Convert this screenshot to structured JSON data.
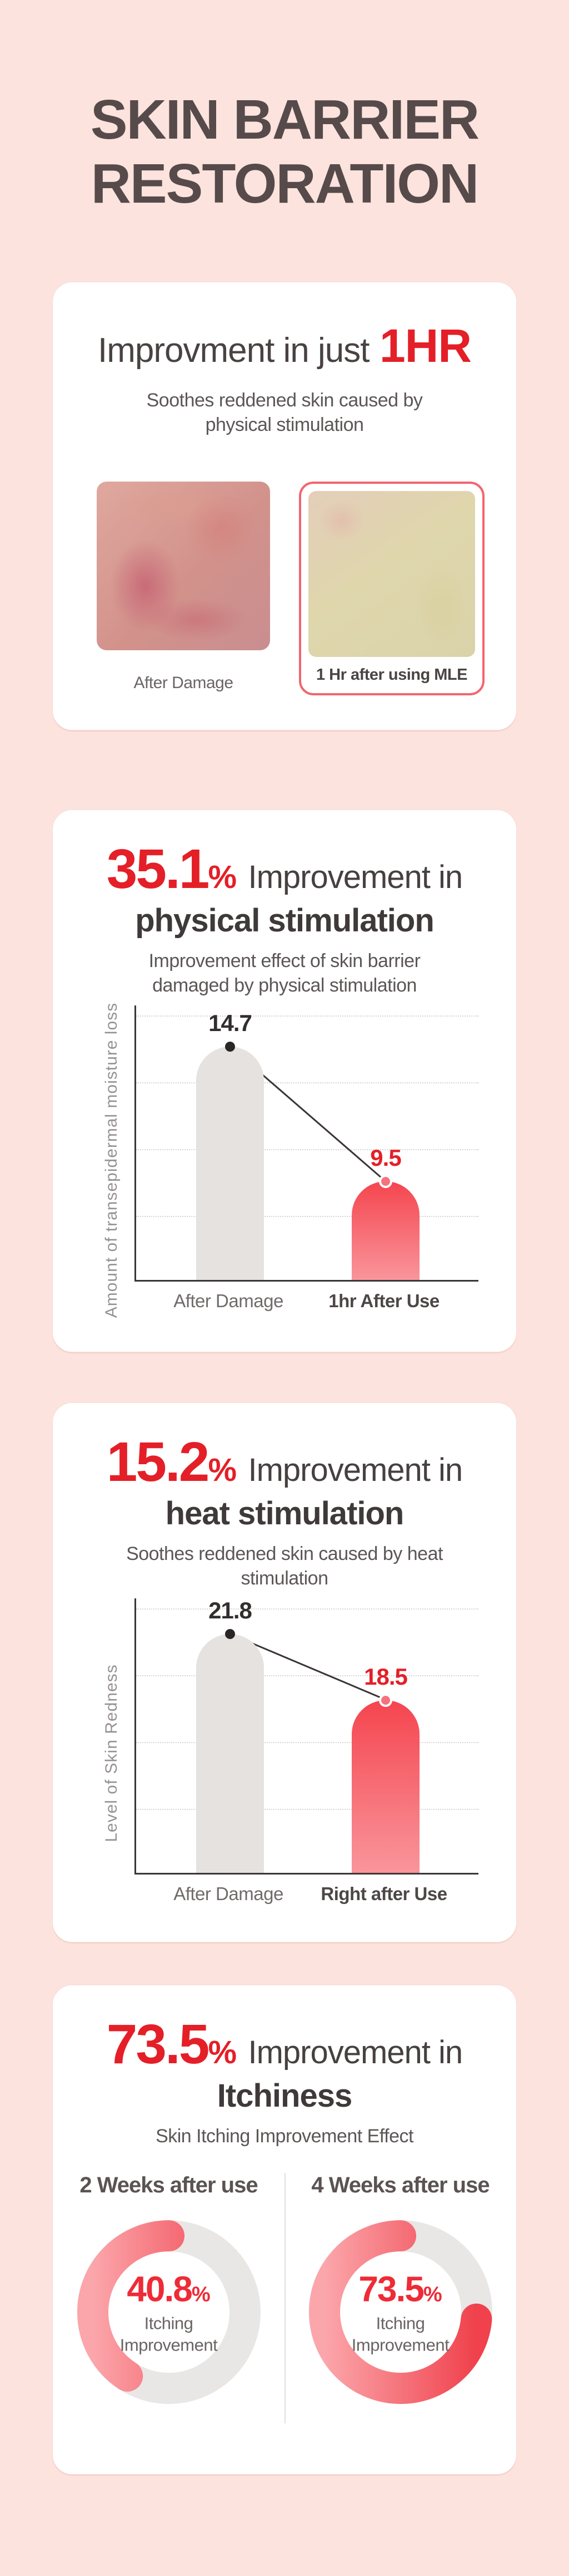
{
  "page": {
    "background": "#FCE3DD",
    "accent_red": "#E41F27"
  },
  "header": {
    "title_line1": "SKIN BARRIER",
    "title_line2": "RESTORATION"
  },
  "card_instant": {
    "heading_prefix": "Improvment in just",
    "heading_highlight": "1HR",
    "subtitle": "Soothes reddened skin caused by physical stimulation",
    "left_label": "After Damage",
    "right_label": "1 Hr after using MLE"
  },
  "card_physical": {
    "percent": "35.1",
    "percent_sign": "%",
    "heading_rest": "Improvement in",
    "heading_line2": "physical stimulation",
    "subtitle": "Improvement effect of skin barrier damaged by physical stimulation"
  },
  "card_heat": {
    "percent": "15.2",
    "percent_sign": "%",
    "heading_rest": "Improvement in",
    "heading_line2": "heat stimulation",
    "subtitle": "Soothes reddened skin caused by heat stimulation"
  },
  "card_itch": {
    "percent": "73.5",
    "percent_sign": "%",
    "heading_rest": "Improvement in",
    "heading_line2": "Itchiness",
    "subtitle": "Skin Itching Improvement Effect"
  },
  "chart_data": [
    {
      "type": "bar",
      "title": "Improvement effect of skin barrier damaged by physical stimulation",
      "ylabel": "Amount of transepidermal moisture loss",
      "categories": [
        "After Damage",
        "1hr After Use"
      ],
      "values": [
        14.7,
        9.5
      ],
      "series_colors": [
        "#E5E2DF",
        "#F5454F"
      ],
      "value_label_colors": [
        "#332E2E",
        "#E41F27"
      ],
      "layout": {
        "grid": "4 dotted horizontal lines",
        "legend": "none",
        "display_height_pct": [
          85,
          36
        ],
        "connector_line": true
      }
    },
    {
      "type": "bar",
      "title": "Soothes reddened skin caused by heat stimulation",
      "ylabel": "Level of Skin Redness",
      "categories": [
        "After Damage",
        "Right after Use"
      ],
      "values": [
        21.8,
        18.5
      ],
      "series_colors": [
        "#E5E2DF",
        "#F5454F"
      ],
      "value_label_colors": [
        "#332E2E",
        "#E41F27"
      ],
      "layout": {
        "grid": "4 dotted horizontal lines",
        "legend": "none",
        "display_height_pct": [
          87,
          63
        ],
        "connector_line": true
      }
    },
    {
      "type": "donut",
      "title": "Skin Itching Improvement Effect",
      "series": [
        {
          "name": "2 Weeks after use",
          "value": 40.8,
          "unit": "%",
          "label": "Itching Improvement"
        },
        {
          "name": "4 Weeks after use",
          "value": 73.5,
          "unit": "%",
          "label": "Itching Improvement"
        }
      ],
      "colors": {
        "progress_start": "#F0414C",
        "progress_end": "#FBA6AB",
        "track": "#E9E7E6"
      },
      "layout": {
        "start_angle": "top",
        "direction": "counter-clockwise",
        "stroke_width": 56
      }
    }
  ]
}
